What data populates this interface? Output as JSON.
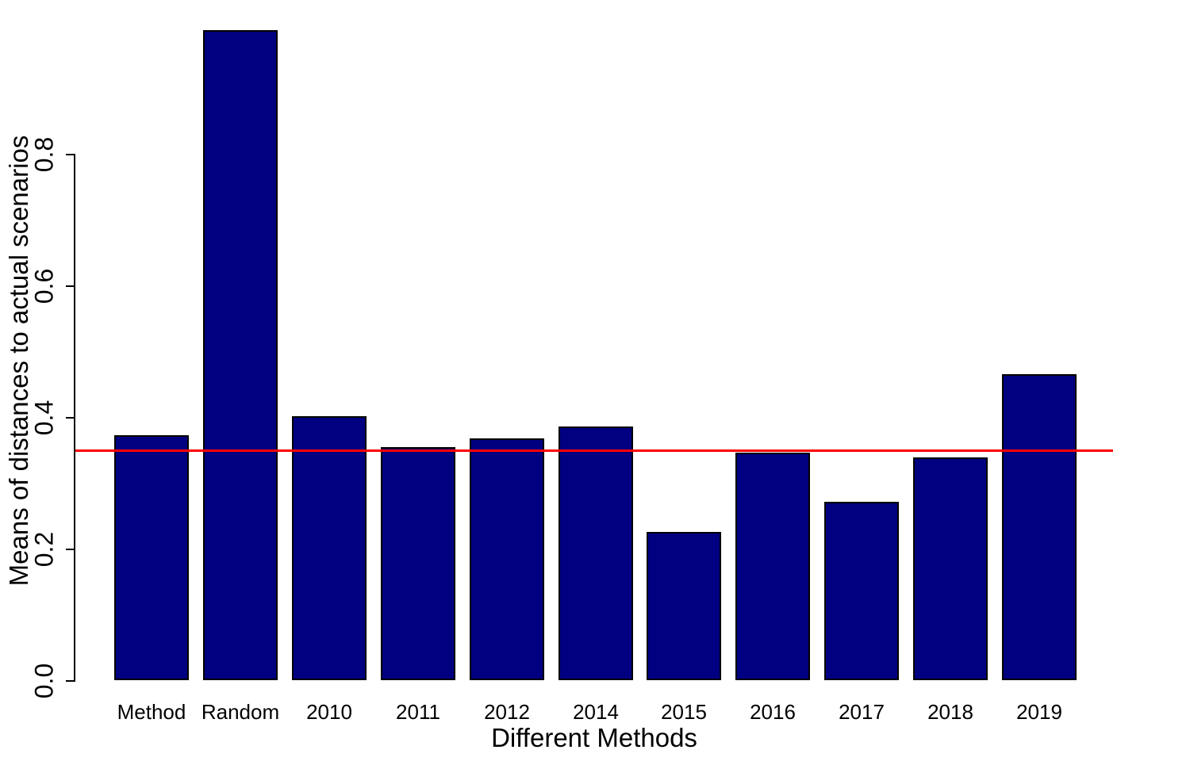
{
  "chart_data": {
    "type": "bar",
    "title": "",
    "xlabel": "Different Methods",
    "ylabel": "Means of distances to actual scenarios",
    "categories": [
      "Method",
      "Random",
      "2010",
      "2011",
      "2012",
      "2014",
      "2015",
      "2016",
      "2017",
      "2018",
      "2019"
    ],
    "values": [
      0.372,
      0.988,
      0.401,
      0.354,
      0.367,
      0.385,
      0.225,
      0.346,
      0.271,
      0.338,
      0.465
    ],
    "ylim": [
      0.0,
      1.0
    ],
    "yticks": [
      0.0,
      0.2,
      0.4,
      0.6,
      0.8
    ],
    "ytick_labels": [
      "0.0",
      "0.2",
      "0.4",
      "0.6",
      "0.8"
    ],
    "grid": false,
    "legend": false,
    "bar_color": "#000080",
    "bar_border_color": "#000000",
    "background_color": "#FFFFFF",
    "reference_line": {
      "orientation": "horizontal",
      "value": 0.35,
      "color": "#FF0000"
    }
  }
}
